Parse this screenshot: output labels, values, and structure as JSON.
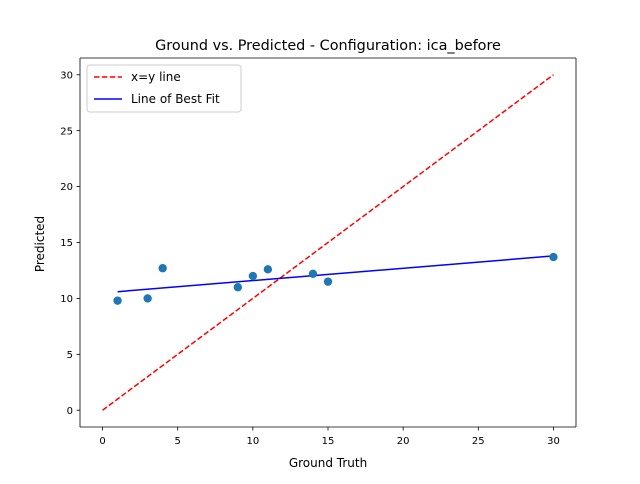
{
  "chart_data": {
    "type": "scatter",
    "title": "Ground vs. Predicted - Configuration: ica_before",
    "xlabel": "Ground Truth",
    "ylabel": "Predicted",
    "xlim": [
      -1.5,
      31.5
    ],
    "ylim": [
      -1.5,
      31.5
    ],
    "xticks": [
      0,
      5,
      10,
      15,
      20,
      25,
      30
    ],
    "yticks": [
      0,
      5,
      10,
      15,
      20,
      25,
      30
    ],
    "grid": false,
    "legend_position": "upper-left",
    "points": [
      {
        "x": 1,
        "y": 9.8
      },
      {
        "x": 3,
        "y": 10.0
      },
      {
        "x": 4,
        "y": 12.7
      },
      {
        "x": 9,
        "y": 11.0
      },
      {
        "x": 10,
        "y": 12.0
      },
      {
        "x": 11,
        "y": 12.6
      },
      {
        "x": 14,
        "y": 12.2
      },
      {
        "x": 15,
        "y": 11.5
      },
      {
        "x": 30,
        "y": 13.7
      }
    ],
    "series": [
      {
        "name": "x=y line",
        "kind": "line",
        "style": "dashed",
        "color": "#ff0000",
        "x": [
          0,
          30
        ],
        "y": [
          0,
          30
        ]
      },
      {
        "name": "Line of Best Fit",
        "kind": "line",
        "style": "solid",
        "color": "#0000ff",
        "x": [
          1,
          30
        ],
        "y": [
          10.6,
          13.8
        ]
      }
    ],
    "point_color": "#1f77b4"
  }
}
